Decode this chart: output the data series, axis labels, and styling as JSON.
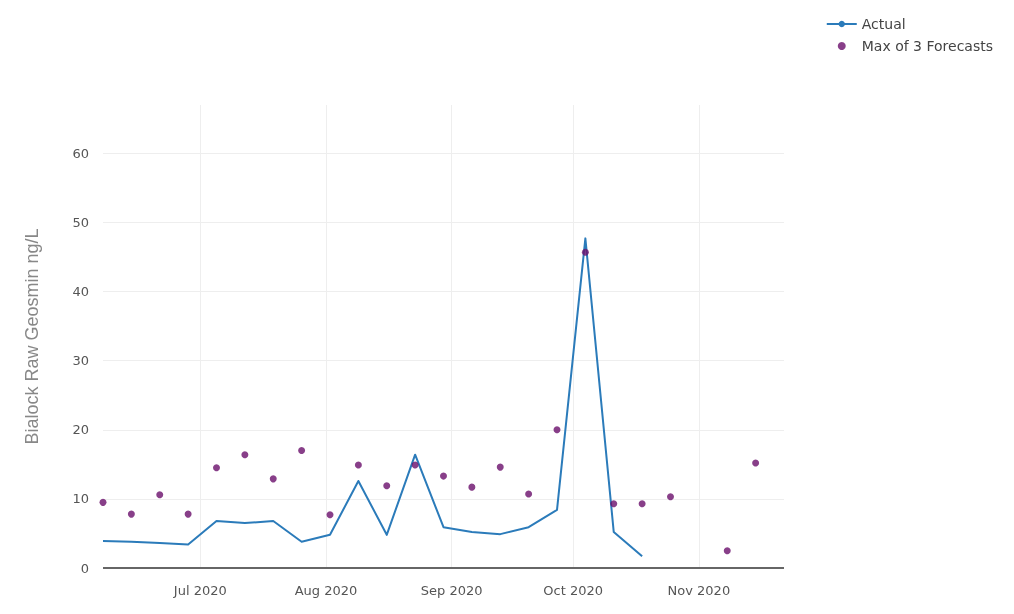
{
  "chart_data": {
    "type": "line",
    "ylabel": "Bialock Raw Geosmin ng/L",
    "xlim": [
      "2020-06-07",
      "2020-11-22"
    ],
    "xticks": [
      {
        "value": "2020-07-01",
        "label": "Jul 2020"
      },
      {
        "value": "2020-08-01",
        "label": "Aug 2020"
      },
      {
        "value": "2020-09-01",
        "label": "Sep 2020"
      },
      {
        "value": "2020-10-01",
        "label": "Oct 2020"
      },
      {
        "value": "2020-11-01",
        "label": "Nov 2020"
      }
    ],
    "ylim": [
      0,
      67
    ],
    "yticks": [
      0,
      10,
      20,
      30,
      40,
      50,
      60
    ],
    "grid": true,
    "legend": "top right",
    "series": [
      {
        "name": "Actual",
        "marker": "none",
        "color": "#2b7bba",
        "x": [
          "2020-06-07",
          "2020-06-14",
          "2020-06-21",
          "2020-06-28",
          "2020-07-05",
          "2020-07-12",
          "2020-07-19",
          "2020-07-26",
          "2020-08-02",
          "2020-08-09",
          "2020-08-16",
          "2020-08-23",
          "2020-08-30",
          "2020-09-06",
          "2020-09-13",
          "2020-09-20",
          "2020-09-27",
          "2020-10-04",
          "2020-10-11",
          "2020-10-18"
        ],
        "values": [
          3.9,
          3.8,
          3.6,
          3.4,
          6.8,
          6.5,
          6.8,
          3.8,
          4.8,
          12.6,
          4.8,
          16.4,
          5.9,
          5.2,
          4.9,
          5.9,
          8.4,
          47.7,
          5.2,
          1.7
        ]
      },
      {
        "name": "Max of 3 Forecasts",
        "type": "scatter",
        "marker": "circle",
        "color": "#6a0f6b",
        "x": [
          "2020-06-07",
          "2020-06-14",
          "2020-06-21",
          "2020-06-28",
          "2020-07-05",
          "2020-07-12",
          "2020-07-19",
          "2020-07-26",
          "2020-08-02",
          "2020-08-09",
          "2020-08-16",
          "2020-08-23",
          "2020-08-30",
          "2020-09-06",
          "2020-09-13",
          "2020-09-20",
          "2020-09-27",
          "2020-10-04",
          "2020-10-11",
          "2020-10-18",
          "2020-10-25",
          "2020-11-01",
          "2020-11-08",
          "2020-11-15"
        ],
        "values": [
          9.5,
          7.8,
          10.6,
          7.8,
          14.5,
          16.4,
          12.9,
          17.0,
          7.7,
          14.9,
          11.9,
          14.9,
          13.3,
          11.7,
          14.6,
          10.7,
          20.0,
          45.7,
          9.3,
          9.3,
          10.3,
          null,
          2.5,
          15.2
        ]
      }
    ]
  }
}
